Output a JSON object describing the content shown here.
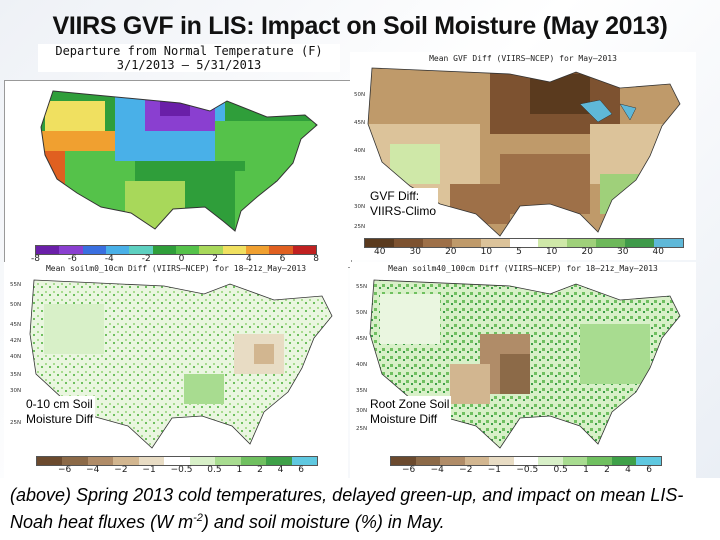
{
  "slide": {
    "title": "VIIRS GVF in LIS: Impact on Soil Moisture (May 2013)"
  },
  "temperature_map": {
    "title_line1": "Departure from Normal Temperature (F)",
    "title_line2": "3/1/2013 – 5/31/2013",
    "colorbar_ticks": [
      "-8",
      "-6",
      "-4",
      "-2",
      "0",
      "2",
      "4",
      "6",
      "8"
    ],
    "colors": [
      "#6a1fa8",
      "#8a3fd0",
      "#3a6fe0",
      "#49b0e8",
      "#5dd0c0",
      "#2f9e3a",
      "#55c24a",
      "#a8d85a",
      "#f0e060",
      "#f0a030",
      "#e06020",
      "#c02020"
    ]
  },
  "gvf_map": {
    "header": "Mean GVF Diff (VIIRS–NCEP) for May–2013",
    "overlay": [
      "GVF Diff:",
      "VIIRS-Climo"
    ],
    "lat_labels": [
      "50N",
      "45N",
      "40N",
      "35N",
      "30N",
      "25N"
    ],
    "colorbar_ticks": [
      "40",
      "30",
      "20",
      "10",
      "5",
      "10",
      "20",
      "30",
      "40"
    ],
    "colors": [
      "#5a3a1e",
      "#7d5230",
      "#9e7048",
      "#bf9a6a",
      "#dcc39a",
      "#ffffff",
      "#cfe8a8",
      "#9fd07a",
      "#6db85a",
      "#3f9a4a",
      "#5fb8d8"
    ]
  },
  "soil_top_map": {
    "header": "Mean soilm0_10cm Diff (VIIRS–NCEP) for 18–21z_May–2013",
    "overlay": [
      "0-10 cm Soil",
      "Moisture Diff"
    ],
    "lat_labels": [
      "55N",
      "50N",
      "45N",
      "42N",
      "40N",
      "35N",
      "30N",
      "25N"
    ],
    "colorbar_ticks": [
      "−6",
      "−4",
      "−2",
      "−1",
      "−0.5",
      "0.5",
      "1",
      "2",
      "4",
      "6"
    ],
    "colors": [
      "#6b4a2e",
      "#8c6a48",
      "#b08c68",
      "#d2b690",
      "#e8dcc4",
      "#ffffff",
      "#d8f0c8",
      "#a8dc90",
      "#70c060",
      "#3ea048",
      "#5fc8e0"
    ]
  },
  "soil_root_map": {
    "header": "Mean soilm40_100cm Diff (VIIRS–NCEP) for 18–21z_May–2013",
    "overlay": [
      "Root Zone Soil",
      "Moisture Diff"
    ],
    "lat_labels": [
      "55N",
      "50N",
      "45N",
      "40N",
      "35N",
      "30N",
      "25N"
    ],
    "colorbar_ticks": [
      "−6",
      "−4",
      "−2",
      "−1",
      "−0.5",
      "0.5",
      "1",
      "2",
      "4",
      "6"
    ],
    "colors": [
      "#6b4a2e",
      "#8c6a48",
      "#b08c68",
      "#d2b690",
      "#e8dcc4",
      "#ffffff",
      "#d8f0c8",
      "#a8dc90",
      "#70c060",
      "#3ea048",
      "#5fc8e0"
    ]
  },
  "caption": {
    "text_before": "(above) Spring 2013 cold temperatures, delayed green-up, and impact on mean LIS-Noah heat fluxes (W m",
    "superscript": "-2",
    "text_after": ") and soil moisture (%) in May."
  }
}
